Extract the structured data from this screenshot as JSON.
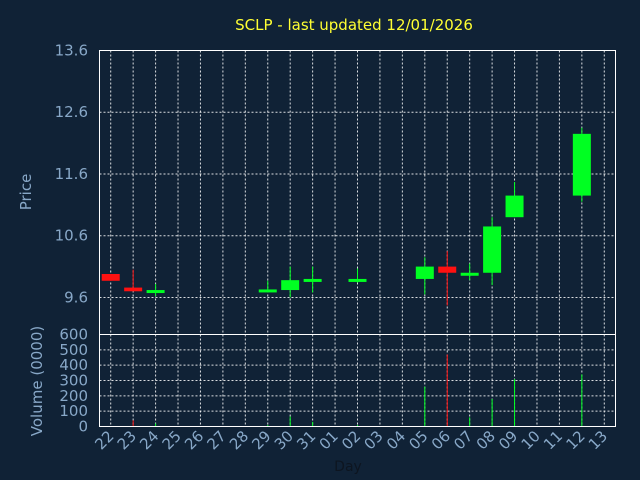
{
  "chart_data": {
    "type": "candlestick",
    "title": "SCLP - last updated 12/01/2026",
    "xlabel": "Day",
    "price_panel": {
      "ylabel": "Price",
      "ylim": [
        9.0,
        13.6
      ],
      "yticks": [
        9.6,
        10.6,
        11.6,
        12.6,
        13.6
      ],
      "ytick_labels": [
        "9.6",
        "10.6",
        "11.6",
        "12.6",
        "13.6"
      ],
      "grid": true
    },
    "volume_panel": {
      "ylabel": "Volume (0000)",
      "ylim": [
        0,
        600
      ],
      "yticks": [
        0,
        100,
        200,
        300,
        400,
        500,
        600
      ],
      "ytick_labels": [
        "0",
        "100",
        "200",
        "300",
        "400",
        "500",
        "600"
      ],
      "grid": true
    },
    "x_ticks": [
      "22",
      "23",
      "24",
      "25",
      "26",
      "27",
      "28",
      "29",
      "30",
      "31",
      "01",
      "02",
      "03",
      "04",
      "05",
      "06",
      "07",
      "08",
      "09",
      "10",
      "11",
      "12",
      "13"
    ],
    "colors": {
      "up": "#00ff22",
      "down": "#ff1111",
      "background": "#102236",
      "title": "#ffff33",
      "ticks": "#88a8c8"
    },
    "candles": [
      {
        "day": "22",
        "open": 9.98,
        "high": 9.98,
        "low": 9.87,
        "close": 9.87,
        "volume": 0
      },
      {
        "day": "23",
        "open": 9.76,
        "high": 10.05,
        "low": 9.7,
        "close": 9.7,
        "volume": 40
      },
      {
        "day": "24",
        "open": 9.7,
        "high": 9.82,
        "low": 9.62,
        "close": 9.72,
        "volume": 20
      },
      {
        "day": "29",
        "open": 9.7,
        "high": 9.87,
        "low": 9.68,
        "close": 9.73,
        "volume": 10
      },
      {
        "day": "30",
        "open": 9.72,
        "high": 10.1,
        "low": 9.6,
        "close": 9.88,
        "volume": 65
      },
      {
        "day": "31",
        "open": 9.86,
        "high": 10.1,
        "low": 9.68,
        "close": 9.9,
        "volume": 30
      },
      {
        "day": "02",
        "open": 9.86,
        "high": 10.07,
        "low": 9.84,
        "close": 9.9,
        "volume": 10
      },
      {
        "day": "05",
        "open": 9.9,
        "high": 10.25,
        "low": 9.65,
        "close": 10.1,
        "volume": 260
      },
      {
        "day": "06",
        "open": 10.1,
        "high": 10.35,
        "low": 9.47,
        "close": 10.0,
        "volume": 470
      },
      {
        "day": "07",
        "open": 9.96,
        "high": 10.15,
        "low": 9.88,
        "close": 10.0,
        "volume": 60
      },
      {
        "day": "08",
        "open": 10.0,
        "high": 10.9,
        "low": 9.8,
        "close": 10.75,
        "volume": 180
      },
      {
        "day": "09",
        "open": 10.9,
        "high": 11.47,
        "low": 10.9,
        "close": 11.25,
        "volume": 310
      },
      {
        "day": "12",
        "open": 11.25,
        "high": 12.35,
        "low": 11.15,
        "close": 12.25,
        "volume": 340
      }
    ]
  }
}
